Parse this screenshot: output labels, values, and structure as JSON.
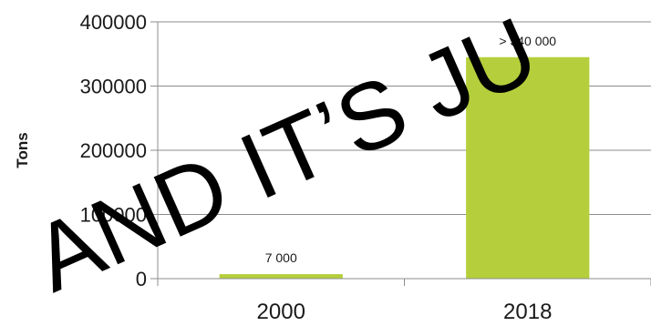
{
  "chart_data": {
    "type": "bar",
    "categories": [
      "2000",
      "2018"
    ],
    "values": [
      7000,
      345000
    ],
    "data_labels": [
      "7 000",
      "> 340 000"
    ],
    "ylabel": "Tons",
    "ylim": [
      0,
      400000
    ],
    "yticks": [
      0,
      100000,
      200000,
      300000,
      400000
    ],
    "ytick_labels": [
      "0",
      "100000",
      "200000",
      "300000",
      "400000"
    ],
    "grid": true,
    "bar_color": "#b5cf3c",
    "grid_color": "#8c8c8c"
  },
  "overlay_text": "AND IT’S JU"
}
